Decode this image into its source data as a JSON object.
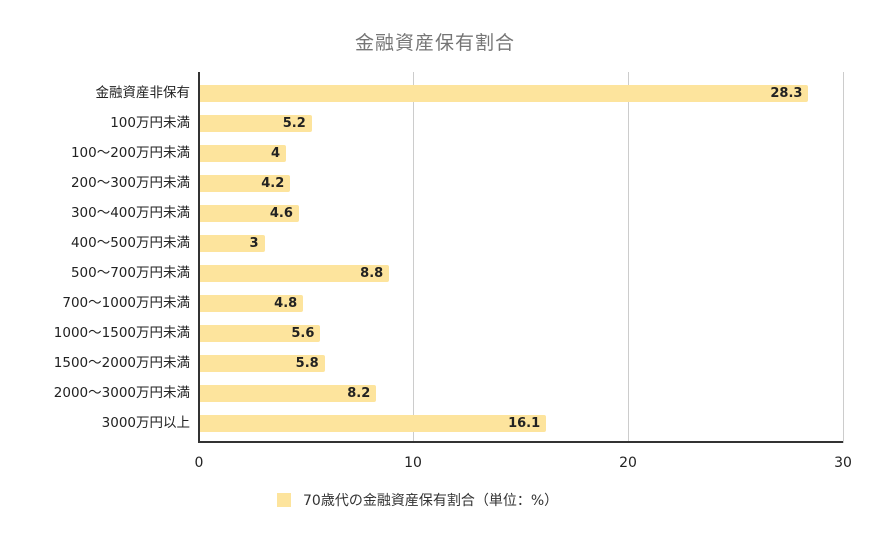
{
  "chart_data": {
    "type": "bar",
    "orientation": "horizontal",
    "title": "金融資産保有割合",
    "xlabel": "",
    "ylabel": "",
    "xlim": [
      0,
      30
    ],
    "xticks": [
      0,
      10,
      20,
      30
    ],
    "grid": true,
    "legend_position": "bottom",
    "categories": [
      "金融資産非保有",
      "100万円未満",
      "100～200万円未満",
      "200～300万円未満",
      "300～400万円未満",
      "400～500万円未満",
      "500～700万円未満",
      "700～1000万円未満",
      "1000～1500万円未満",
      "1500～2000万円未満",
      "2000～3000万円未満",
      "3000万円以上"
    ],
    "series": [
      {
        "name": "70歳代の金融資産保有割合(単位:%)",
        "color": "#FDE49D",
        "values": [
          28.3,
          5.2,
          4,
          4.2,
          4.6,
          3,
          8.8,
          4.8,
          5.6,
          5.8,
          8.2,
          16.1
        ],
        "labels": [
          "28.3",
          "5.2",
          "4",
          "4.2",
          "4.6",
          "3",
          "8.8",
          "4.8",
          "5.6",
          "5.8",
          "8.2",
          "16.1"
        ]
      }
    ]
  },
  "title": "金融資産保有割合",
  "ticks": [
    "0",
    "10",
    "20",
    "30"
  ],
  "legend": {
    "label": "70歳代の金融資産保有割合（単位：%）",
    "color": "#FDE49D"
  }
}
